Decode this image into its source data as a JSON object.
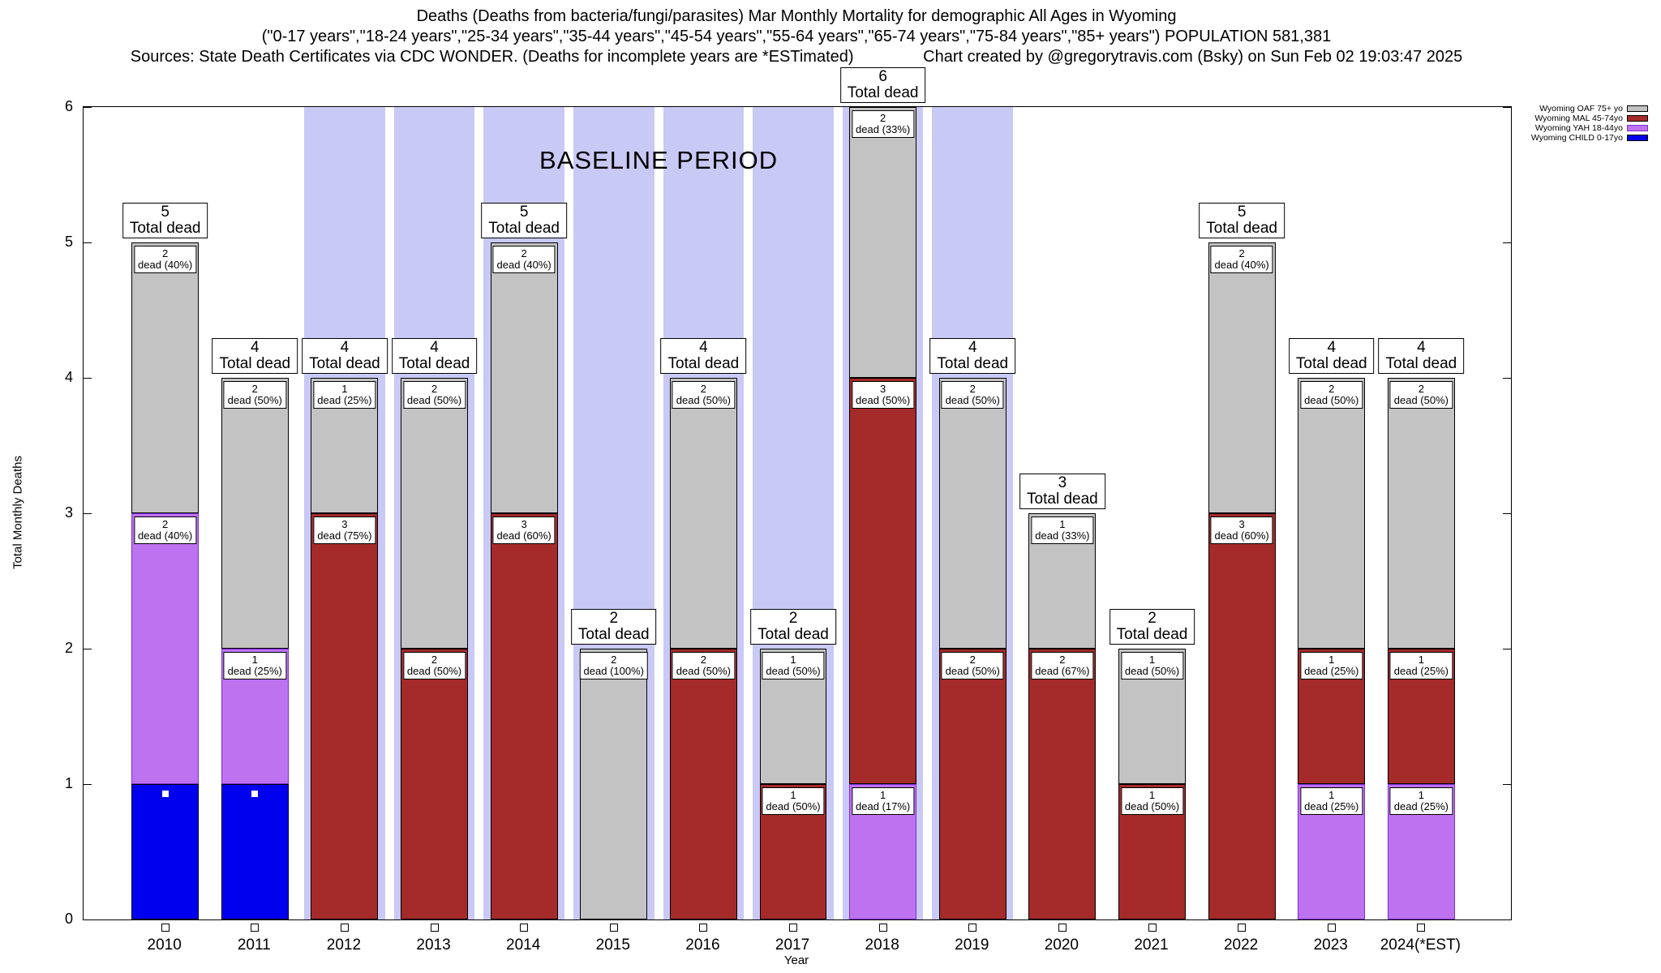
{
  "chart_data": {
    "type": "bar",
    "stacked": true,
    "title_line1": "Deaths (Deaths from bacteria/fungi/parasites) Mar Monthly Mortality for demographic All Ages in Wyoming",
    "title_line2": "(\"0-17 years\",\"18-24 years\",\"25-34 years\",\"35-44 years\",\"45-54 years\",\"55-64 years\",\"65-74 years\",\"75-84 years\",\"85+ years\") POPULATION 581,381",
    "title_line3_sources": "Sources: State Death Certificates via CDC WONDER. (Deaths for incomplete years are *ESTimated)",
    "title_line3_credit": "Chart created by @gregorytravis.com (Bsky) on Sun Feb 02 19:03:47 2025",
    "xlabel": "Year",
    "ylabel": "Total Monthly Deaths",
    "ylim": [
      0,
      6
    ],
    "yticks": [
      0,
      1,
      2,
      3,
      4,
      5,
      6
    ],
    "total_label_suffix": "Total dead",
    "baseline_region": {
      "label": "BASELINE PERIOD",
      "from": "2012",
      "to": "2019",
      "color": "#c9c9f6"
    },
    "child_point_value": 0.93,
    "legend": [
      {
        "id": "oaf",
        "label": "Wyoming OAF 75+ yo",
        "color": "#c3c3c3"
      },
      {
        "id": "mal",
        "label": "Wyoming MAL 45-74yo",
        "color": "#a52a2a"
      },
      {
        "id": "yah",
        "label": "Wyoming YAH 18-44yo",
        "color": "#bd72f0"
      },
      {
        "id": "child",
        "label": "Wyoming CHILD 0-17yo",
        "color": "#0000ee"
      }
    ],
    "categories": [
      "2010",
      "2011",
      "2012",
      "2013",
      "2014",
      "2015",
      "2016",
      "2017",
      "2018",
      "2019",
      "2020",
      "2021",
      "2022",
      "2023",
      "2024(*EST)"
    ],
    "bars": [
      {
        "year": "2010",
        "total": 5,
        "child_point": true,
        "segments": [
          {
            "series": "child",
            "value": 1
          },
          {
            "series": "yah",
            "value": 2,
            "label": [
              "2",
              "dead (40%)"
            ]
          },
          {
            "series": "oaf",
            "value": 2,
            "label": [
              "2",
              "dead (40%)"
            ]
          }
        ]
      },
      {
        "year": "2011",
        "total": 4,
        "child_point": true,
        "segments": [
          {
            "series": "child",
            "value": 1
          },
          {
            "series": "yah",
            "value": 1,
            "label": [
              "1",
              "dead (25%)"
            ]
          },
          {
            "series": "oaf",
            "value": 2,
            "label": [
              "2",
              "dead (50%)"
            ]
          }
        ]
      },
      {
        "year": "2012",
        "total": 4,
        "segments": [
          {
            "series": "mal",
            "value": 3,
            "label": [
              "3",
              "dead (75%)"
            ]
          },
          {
            "series": "oaf",
            "value": 1,
            "label": [
              "1",
              "dead (25%)"
            ]
          }
        ]
      },
      {
        "year": "2013",
        "total": 4,
        "segments": [
          {
            "series": "mal",
            "value": 2,
            "label": [
              "2",
              "dead (50%)"
            ]
          },
          {
            "series": "oaf",
            "value": 2,
            "label": [
              "2",
              "dead (50%)"
            ]
          }
        ]
      },
      {
        "year": "2014",
        "total": 5,
        "segments": [
          {
            "series": "mal",
            "value": 3,
            "label": [
              "3",
              "dead (60%)"
            ]
          },
          {
            "series": "oaf",
            "value": 2,
            "label": [
              "2",
              "dead (40%)"
            ]
          }
        ]
      },
      {
        "year": "2015",
        "total": 2,
        "segments": [
          {
            "series": "oaf",
            "value": 2,
            "label": [
              "2",
              "dead (100%)"
            ]
          }
        ]
      },
      {
        "year": "2016",
        "total": 4,
        "segments": [
          {
            "series": "mal",
            "value": 2,
            "label": [
              "2",
              "dead (50%)"
            ]
          },
          {
            "series": "oaf",
            "value": 2,
            "label": [
              "2",
              "dead (50%)"
            ]
          }
        ]
      },
      {
        "year": "2017",
        "total": 2,
        "segments": [
          {
            "series": "mal",
            "value": 1,
            "label": [
              "1",
              "dead (50%)"
            ]
          },
          {
            "series": "oaf",
            "value": 1,
            "label": [
              "1",
              "dead (50%)"
            ]
          }
        ]
      },
      {
        "year": "2018",
        "total": 6,
        "segments": [
          {
            "series": "yah",
            "value": 1,
            "label": [
              "1",
              "dead (17%)"
            ]
          },
          {
            "series": "mal",
            "value": 3,
            "label": [
              "3",
              "dead (50%)"
            ]
          },
          {
            "series": "oaf",
            "value": 2,
            "label": [
              "2",
              "dead (33%)"
            ]
          }
        ]
      },
      {
        "year": "2019",
        "total": 4,
        "segments": [
          {
            "series": "mal",
            "value": 2,
            "label": [
              "2",
              "dead (50%)"
            ]
          },
          {
            "series": "oaf",
            "value": 2,
            "label": [
              "2",
              "dead (50%)"
            ]
          }
        ]
      },
      {
        "year": "2020",
        "total": 3,
        "segments": [
          {
            "series": "mal",
            "value": 2,
            "label": [
              "2",
              "dead (67%)"
            ]
          },
          {
            "series": "oaf",
            "value": 1,
            "label": [
              "1",
              "dead (33%)"
            ]
          }
        ]
      },
      {
        "year": "2021",
        "total": 2,
        "segments": [
          {
            "series": "mal",
            "value": 1,
            "label": [
              "1",
              "dead (50%)"
            ]
          },
          {
            "series": "oaf",
            "value": 1,
            "label": [
              "1",
              "dead (50%)"
            ]
          }
        ]
      },
      {
        "year": "2022",
        "total": 5,
        "segments": [
          {
            "series": "mal",
            "value": 3,
            "label": [
              "3",
              "dead (60%)"
            ]
          },
          {
            "series": "oaf",
            "value": 2,
            "label": [
              "2",
              "dead (40%)"
            ]
          }
        ]
      },
      {
        "year": "2023",
        "total": 4,
        "segments": [
          {
            "series": "yah",
            "value": 1,
            "label": [
              "1",
              "dead (25%)"
            ]
          },
          {
            "series": "mal",
            "value": 1,
            "label": [
              "1",
              "dead (25%)"
            ]
          },
          {
            "series": "oaf",
            "value": 2,
            "label": [
              "2",
              "dead (50%)"
            ]
          }
        ]
      },
      {
        "year": "2024(*EST)",
        "total": 4,
        "segments": [
          {
            "series": "yah",
            "value": 1,
            "label": [
              "1",
              "dead (25%)"
            ]
          },
          {
            "series": "mal",
            "value": 1,
            "label": [
              "1",
              "dead (25%)"
            ]
          },
          {
            "series": "oaf",
            "value": 2,
            "label": [
              "2",
              "dead (50%)"
            ]
          }
        ]
      }
    ]
  }
}
